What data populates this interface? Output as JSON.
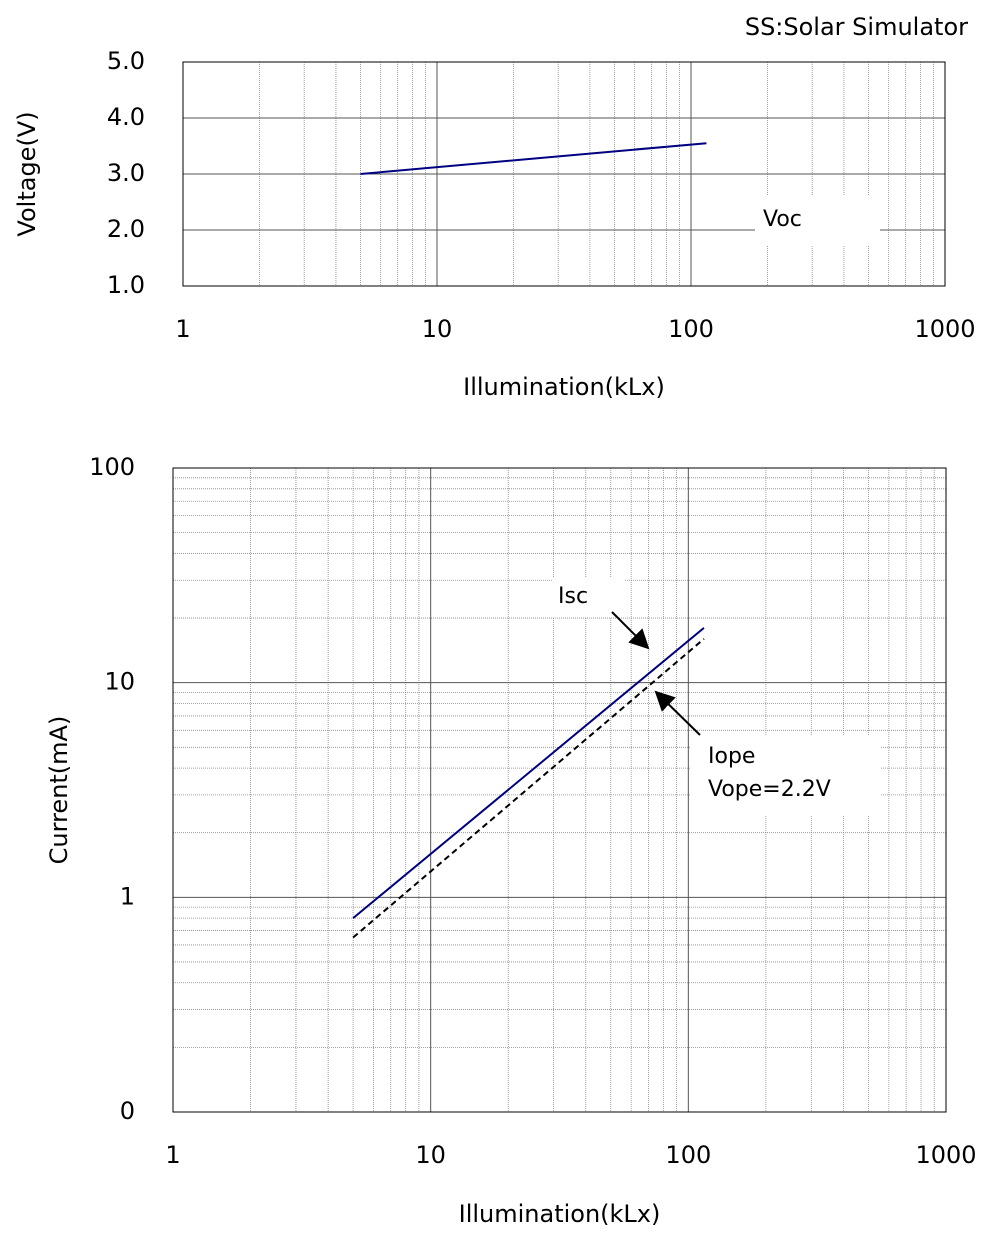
{
  "chart_data": [
    {
      "type": "line",
      "subtitle": "SS:Solar Simulator",
      "x_label": "Illumination(kLx)",
      "y_label": "Voltage(V)",
      "x": [
        5,
        115
      ],
      "series": [
        {
          "name": "Voc",
          "color": "#000080",
          "values": [
            3.0,
            3.55
          ]
        }
      ],
      "xlim": [
        1,
        1000
      ],
      "xticks": [
        1,
        10,
        100,
        1000
      ],
      "x_log": true,
      "ylim": [
        1,
        5
      ],
      "yticks": [
        {
          "value": 1,
          "label": "1.0"
        },
        {
          "value": 2,
          "label": "2.0"
        },
        {
          "value": 3,
          "label": "3.0"
        },
        {
          "value": 4,
          "label": "4.0"
        },
        {
          "value": 5,
          "label": "5.0"
        }
      ],
      "y_log": false,
      "grid": true
    },
    {
      "type": "line",
      "x_label": "Illumination(kLx)",
      "y_label": "Current(mA)",
      "x": [
        5,
        115
      ],
      "series": [
        {
          "name": "Isc",
          "color": "#000080",
          "values": [
            0.8,
            18
          ],
          "line_style": "solid"
        },
        {
          "name": "Iope",
          "color": "#000000",
          "values": [
            0.65,
            16
          ],
          "line_style": "dashed"
        }
      ],
      "annotations": [
        "Vope=2.2V"
      ],
      "xlim": [
        1,
        1000
      ],
      "xticks": [
        1,
        10,
        100,
        1000
      ],
      "x_log": true,
      "ylim": [
        0.1,
        100
      ],
      "yticks": [
        {
          "value": 0.1,
          "label": "0"
        },
        1,
        10,
        100
      ],
      "y_log": true,
      "grid": true
    }
  ]
}
